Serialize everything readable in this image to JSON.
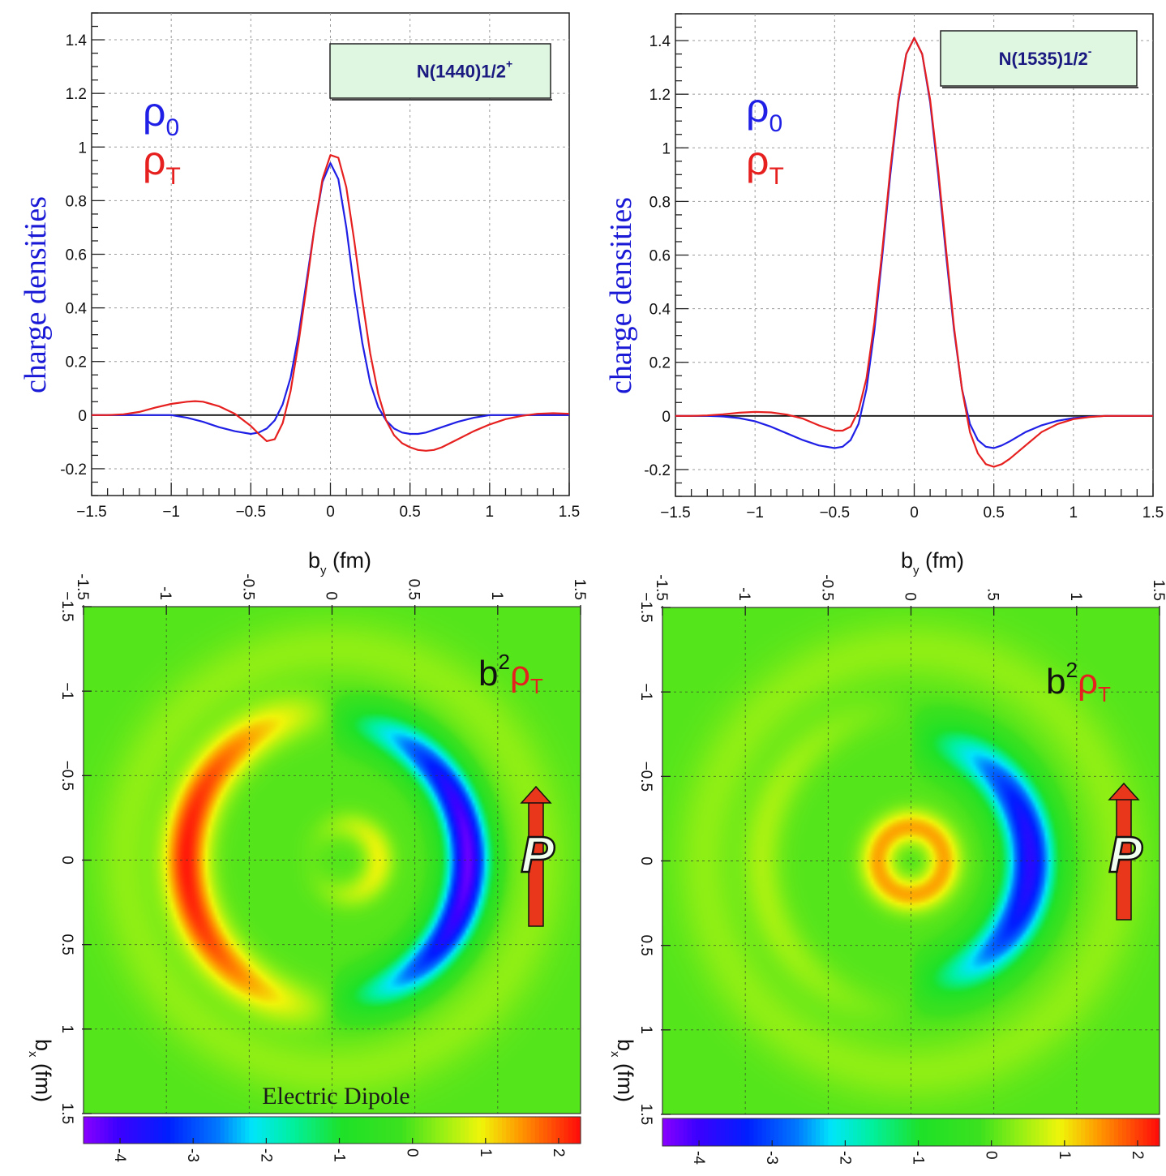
{
  "chart_data": [
    {
      "id": "n1440-line",
      "type": "line",
      "title": "N(1440)1/2+",
      "badge": {
        "main": "N(1440)1/2",
        "sup": "+"
      },
      "xlabel": {
        "base": "b",
        "sub": "y",
        "unit": " (fm)"
      },
      "ylabel": "charge densities",
      "xlim": [
        -1.5,
        1.5
      ],
      "ylim": [
        -0.3,
        1.5
      ],
      "xticks": [
        -1.5,
        -1,
        -0.5,
        0,
        0.5,
        1,
        1.5
      ],
      "xtick_labels": [
        "−1.5",
        "−1",
        "−0.5",
        "0",
        "0.5",
        "1",
        "1.5"
      ],
      "yticks": [
        -0.2,
        0,
        0.2,
        0.4,
        0.6,
        0.8,
        1,
        1.2,
        1.4
      ],
      "ytick_labels": [
        "-0.2",
        "0",
        "0.2",
        "0.4",
        "0.6",
        "0.8",
        "1",
        "1.2",
        "1.4"
      ],
      "legend": [
        {
          "base": "ρ",
          "sub": "0",
          "color": "#1f1fe6"
        },
        {
          "base": "ρ",
          "sub": "T",
          "color": "#e61f1f"
        }
      ],
      "series": [
        {
          "name": "ρ0",
          "color": "#1f1fe6",
          "x": [
            -1.5,
            -1.4,
            -1.3,
            -1.2,
            -1.1,
            -1.0,
            -0.9,
            -0.8,
            -0.7,
            -0.6,
            -0.5,
            -0.45,
            -0.4,
            -0.35,
            -0.3,
            -0.25,
            -0.2,
            -0.15,
            -0.1,
            -0.05,
            0,
            0.05,
            0.1,
            0.15,
            0.2,
            0.25,
            0.3,
            0.35,
            0.4,
            0.45,
            0.5,
            0.55,
            0.6,
            0.7,
            0.8,
            0.9,
            1.0,
            1.1,
            1.2,
            1.3,
            1.4,
            1.5
          ],
          "y": [
            0,
            0,
            0,
            0,
            0,
            0,
            -0.01,
            -0.025,
            -0.045,
            -0.06,
            -0.07,
            -0.065,
            -0.05,
            -0.02,
            0.04,
            0.14,
            0.3,
            0.5,
            0.7,
            0.87,
            0.94,
            0.88,
            0.7,
            0.47,
            0.27,
            0.12,
            0.03,
            -0.02,
            -0.05,
            -0.065,
            -0.07,
            -0.07,
            -0.065,
            -0.045,
            -0.025,
            -0.01,
            0,
            0,
            0,
            0,
            0,
            0
          ]
        },
        {
          "name": "ρT",
          "color": "#e61f1f",
          "x": [
            -1.5,
            -1.4,
            -1.3,
            -1.2,
            -1.1,
            -1.0,
            -0.9,
            -0.85,
            -0.8,
            -0.7,
            -0.6,
            -0.5,
            -0.45,
            -0.4,
            -0.35,
            -0.3,
            -0.25,
            -0.2,
            -0.15,
            -0.1,
            -0.05,
            0,
            0.05,
            0.1,
            0.15,
            0.2,
            0.25,
            0.3,
            0.35,
            0.4,
            0.45,
            0.5,
            0.55,
            0.6,
            0.65,
            0.7,
            0.8,
            0.9,
            1.0,
            1.1,
            1.2,
            1.3,
            1.4,
            1.5
          ],
          "y": [
            0,
            0,
            0.003,
            0.012,
            0.028,
            0.042,
            0.05,
            0.052,
            0.05,
            0.033,
            0.005,
            -0.04,
            -0.07,
            -0.097,
            -0.09,
            -0.03,
            0.09,
            0.27,
            0.48,
            0.7,
            0.88,
            0.97,
            0.96,
            0.85,
            0.65,
            0.43,
            0.23,
            0.08,
            -0.02,
            -0.075,
            -0.105,
            -0.12,
            -0.13,
            -0.133,
            -0.13,
            -0.12,
            -0.09,
            -0.06,
            -0.035,
            -0.015,
            -0.003,
            0.005,
            0.007,
            0.005
          ]
        }
      ]
    },
    {
      "id": "n1535-line",
      "type": "line",
      "title": "N(1535)1/2-",
      "badge": {
        "main": "N(1535)1/2",
        "sup": "-"
      },
      "xlabel": {
        "base": "b",
        "sub": "y",
        "unit": " (fm)"
      },
      "ylabel": "charge densities",
      "xlim": [
        -1.5,
        1.5
      ],
      "ylim": [
        -0.3,
        1.5
      ],
      "xticks": [
        -1.5,
        -1,
        -0.5,
        0,
        0.5,
        1,
        1.5
      ],
      "xtick_labels": [
        "−1.5",
        "−1",
        "−0.5",
        "0",
        "0.5",
        "1",
        "1.5"
      ],
      "yticks": [
        -0.2,
        0,
        0.2,
        0.4,
        0.6,
        0.8,
        1,
        1.2,
        1.4
      ],
      "ytick_labels": [
        "-0.2",
        "0",
        "0.2",
        "0.4",
        "0.6",
        "0.8",
        "1",
        "1.2",
        "1.4"
      ],
      "legend": [
        {
          "base": "ρ",
          "sub": "0",
          "color": "#1f1fe6"
        },
        {
          "base": "ρ",
          "sub": "T",
          "color": "#e61f1f"
        }
      ],
      "series": [
        {
          "name": "ρ0",
          "color": "#1f1fe6",
          "x": [
            -1.5,
            -1.4,
            -1.3,
            -1.2,
            -1.1,
            -1.0,
            -0.9,
            -0.8,
            -0.7,
            -0.6,
            -0.5,
            -0.45,
            -0.4,
            -0.35,
            -0.3,
            -0.25,
            -0.2,
            -0.15,
            -0.1,
            -0.05,
            0,
            0.05,
            0.1,
            0.15,
            0.2,
            0.25,
            0.3,
            0.35,
            0.4,
            0.45,
            0.5,
            0.55,
            0.6,
            0.7,
            0.8,
            0.9,
            1.0,
            1.1,
            1.2,
            1.3,
            1.4,
            1.5
          ],
          "y": [
            0,
            0,
            0,
            -0.002,
            -0.008,
            -0.02,
            -0.04,
            -0.065,
            -0.09,
            -0.11,
            -0.12,
            -0.115,
            -0.09,
            -0.03,
            0.1,
            0.32,
            0.6,
            0.9,
            1.17,
            1.35,
            1.41,
            1.35,
            1.17,
            0.9,
            0.6,
            0.32,
            0.1,
            -0.03,
            -0.09,
            -0.115,
            -0.12,
            -0.11,
            -0.095,
            -0.06,
            -0.035,
            -0.018,
            -0.008,
            -0.003,
            0,
            0,
            0,
            0
          ]
        },
        {
          "name": "ρT",
          "color": "#e61f1f",
          "x": [
            -1.5,
            -1.4,
            -1.3,
            -1.2,
            -1.1,
            -1.0,
            -0.9,
            -0.8,
            -0.7,
            -0.6,
            -0.5,
            -0.45,
            -0.4,
            -0.35,
            -0.3,
            -0.25,
            -0.2,
            -0.15,
            -0.1,
            -0.05,
            0,
            0.05,
            0.1,
            0.15,
            0.2,
            0.25,
            0.3,
            0.35,
            0.4,
            0.45,
            0.5,
            0.55,
            0.6,
            0.7,
            0.8,
            0.9,
            1.0,
            1.1,
            1.2,
            1.3,
            1.4,
            1.5
          ],
          "y": [
            0,
            0,
            0.002,
            0.006,
            0.012,
            0.015,
            0.013,
            0.005,
            -0.01,
            -0.035,
            -0.055,
            -0.055,
            -0.04,
            0.02,
            0.14,
            0.35,
            0.62,
            0.92,
            1.18,
            1.35,
            1.41,
            1.35,
            1.18,
            0.92,
            0.62,
            0.33,
            0.1,
            -0.06,
            -0.14,
            -0.18,
            -0.19,
            -0.18,
            -0.16,
            -0.11,
            -0.06,
            -0.03,
            -0.012,
            -0.004,
            0,
            0,
            0,
            0
          ]
        }
      ]
    },
    {
      "id": "n1440-map",
      "type": "heatmap",
      "quantity": {
        "prefix": "b",
        "sup": "2",
        "base": "ρ",
        "sub": "T"
      },
      "annotation": "Electric Dipole",
      "arrow_label": "P",
      "xlabel": {
        "base": "b",
        "sub": "x",
        "unit": " (fm)"
      },
      "xlim": [
        -1.5,
        1.5
      ],
      "ylim": [
        -1.5,
        1.5
      ],
      "top_ticks": [
        -1.5,
        -1,
        -0.5,
        0,
        0.5,
        1,
        1.5
      ],
      "top_tick_labels": [
        "-1.5",
        "-1",
        "-0.5",
        "0",
        "0.5",
        "1",
        "1.5"
      ],
      "left_ticks": [
        -1.5,
        -1,
        -0.5,
        0,
        0.5,
        1,
        1.5
      ],
      "left_tick_labels": [
        "−1.5",
        "−1",
        "−0.5",
        "0",
        "0.5",
        "1",
        "1.5"
      ],
      "zlim": [
        -4.5,
        2.3
      ],
      "color_ticks": [
        -4,
        -3,
        -2,
        -1,
        0,
        1,
        2
      ],
      "color_tick_labels": [
        "-4",
        "-3",
        "-2",
        "-1",
        "0",
        "1",
        "2"
      ],
      "features": [
        {
          "kind": "crescent",
          "r": 0.88,
          "width": 0.13,
          "amplitude": 2.2,
          "side": "left"
        },
        {
          "kind": "crescent",
          "r": 0.82,
          "width": 0.13,
          "amplitude": -4.3,
          "side": "right"
        },
        {
          "kind": "ring",
          "r": 0.2,
          "width": 0.09,
          "amplitude": 0.9,
          "offset_x": 0.08
        }
      ]
    },
    {
      "id": "n1535-map",
      "type": "heatmap",
      "quantity": {
        "prefix": "b",
        "sup": "2",
        "base": "ρ",
        "sub": "T"
      },
      "arrow_label": "P",
      "xlabel": {
        "base": "b",
        "sub": "x",
        "unit": " (fm)"
      },
      "xlim": [
        -1.5,
        1.5
      ],
      "ylim": [
        -1.5,
        1.5
      ],
      "top_ticks": [
        -1.5,
        -1,
        -0.5,
        0,
        0.5,
        1,
        1.5
      ],
      "top_tick_labels": [
        "-1.5",
        "-1",
        "-0.5",
        "0",
        ".5",
        "1",
        "1.5"
      ],
      "left_ticks": [
        -1.5,
        -1,
        -0.5,
        0,
        0.5,
        1,
        1.5
      ],
      "left_tick_labels": [
        "−1.5",
        "−1",
        "−0.5",
        "0",
        "0.5",
        "1",
        "1.5"
      ],
      "zlim": [
        -4.5,
        2.3
      ],
      "color_ticks": [
        -4,
        -3,
        -2,
        -1,
        0,
        1,
        2
      ],
      "color_tick_labels": [
        "-4",
        "-3",
        "-2",
        "-1",
        "0",
        "1",
        "2"
      ],
      "features": [
        {
          "kind": "crescent",
          "r": 0.72,
          "width": 0.15,
          "amplitude": -3.8,
          "side": "right"
        },
        {
          "kind": "crescent",
          "r": 0.9,
          "width": 0.12,
          "amplitude": 0.5,
          "side": "left"
        },
        {
          "kind": "ring",
          "r": 0.2,
          "width": 0.1,
          "amplitude": 1.4,
          "offset_x": 0
        }
      ]
    }
  ]
}
